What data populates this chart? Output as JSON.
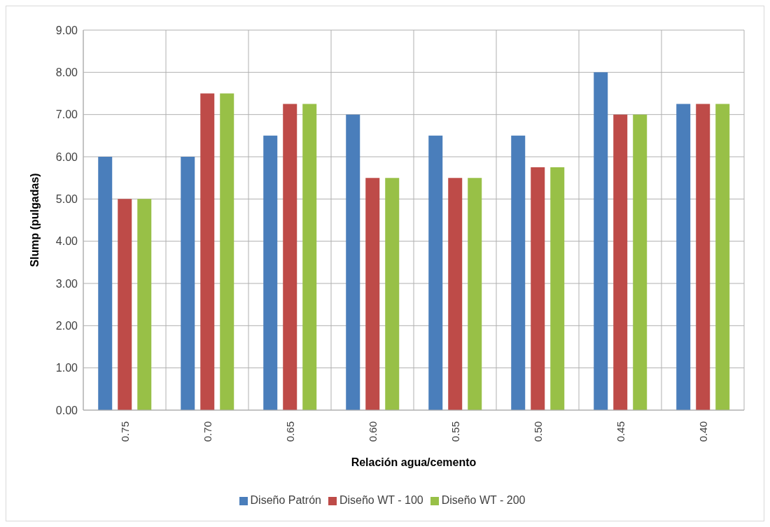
{
  "chart_data": {
    "type": "bar",
    "xlabel": "Relación agua/cemento",
    "ylabel": "Slump (pulgadas)",
    "categories": [
      "0.75",
      "0.70",
      "0.65",
      "0.60",
      "0.55",
      "0.50",
      "0.45",
      "0.40"
    ],
    "series": [
      {
        "name": "Diseño Patrón",
        "color": "#4a7ebb",
        "values": [
          6,
          6,
          6.5,
          7,
          6.5,
          6.5,
          8,
          7.25
        ]
      },
      {
        "name": "Diseño WT - 100",
        "color": "#be4b48",
        "values": [
          5,
          7.5,
          7.25,
          5.5,
          5.5,
          5.75,
          7,
          7.25
        ]
      },
      {
        "name": "Diseño WT - 200",
        "color": "#98c047",
        "values": [
          5,
          7.5,
          7.25,
          5.5,
          5.5,
          5.75,
          7,
          7.25
        ]
      }
    ],
    "ylim": [
      0,
      9
    ],
    "yticks": [
      {
        "value": 0,
        "label": "0.00"
      },
      {
        "value": 1,
        "label": "1.00"
      },
      {
        "value": 2,
        "label": "2.00"
      },
      {
        "value": 3,
        "label": "3.00"
      },
      {
        "value": 4,
        "label": "4.00"
      },
      {
        "value": 5,
        "label": "5.00"
      },
      {
        "value": 6,
        "label": "6.00"
      },
      {
        "value": 7,
        "label": "7.00"
      },
      {
        "value": 8,
        "label": "8.00"
      },
      {
        "value": 9,
        "label": "9.00"
      }
    ],
    "grid": true,
    "legend": "bottom"
  }
}
